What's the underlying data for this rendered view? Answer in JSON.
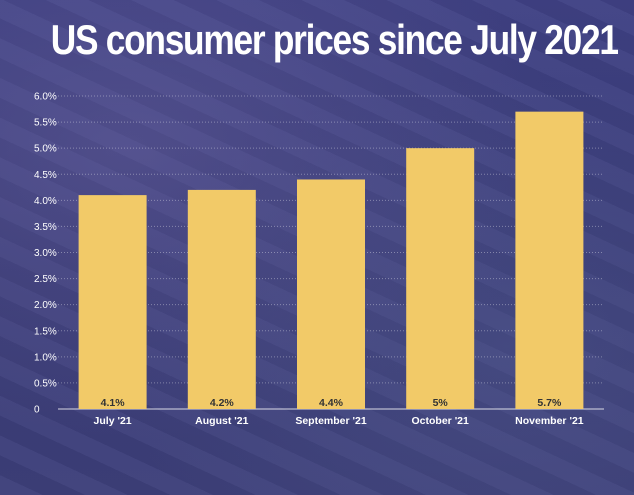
{
  "title": "US consumer prices since July 2021",
  "colors": {
    "bar": "#f2ca68",
    "background": "#3d3f7c",
    "text": "#ffffff",
    "grid": "#ffffff"
  },
  "chart_data": {
    "type": "bar",
    "title": "US consumer prices since July 2021",
    "categories": [
      "July '21",
      "August '21",
      "September '21",
      "October '21",
      "November '21"
    ],
    "values": [
      4.1,
      4.2,
      4.4,
      5.0,
      5.7
    ],
    "data_labels": [
      "4.1%",
      "4.2%",
      "4.4%",
      "5%",
      "5.7%"
    ],
    "yticks": [
      0,
      0.5,
      1.0,
      1.5,
      2.0,
      2.5,
      3.0,
      3.5,
      4.0,
      4.5,
      5.0,
      5.5,
      6.0
    ],
    "ytick_labels": [
      "0",
      "0.5%",
      "1.0%",
      "1.5%",
      "2.0%",
      "2.5%",
      "3.0%",
      "3.5%",
      "4.0%",
      "4.5%",
      "5.0%",
      "5.5%",
      "6.0%"
    ],
    "ylim": [
      0,
      6.0
    ],
    "grid": true,
    "legend": "none"
  }
}
